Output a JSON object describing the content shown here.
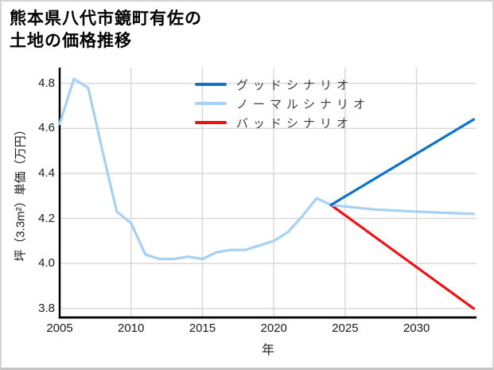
{
  "header": {
    "title_line1": "熊本県八代市鏡町有佐の",
    "title_line2": "土地の価格推移"
  },
  "chart_data": {
    "type": "line",
    "title": "熊本県八代市鏡町有佐の土地の価格推移",
    "xlabel": "年",
    "ylabel": "坪（3.3m²）単価（万円）",
    "xlim": [
      2005,
      2034.2
    ],
    "ylim": [
      3.76,
      4.87
    ],
    "x_ticks": [
      2005,
      2010,
      2015,
      2020,
      2025,
      2030
    ],
    "y_ticks": [
      3.8,
      4.0,
      4.2,
      4.4,
      4.6,
      4.8
    ],
    "grid": true,
    "legend_position": "upper-left-of-center, no frame",
    "colors": {
      "good": "#0e74c9",
      "normal": "#a7d1f4",
      "bad": "#ee1111",
      "grid": "#d9d9d9",
      "axis": "#000000"
    },
    "legend": [
      {
        "label": "グッドシナリオ",
        "color_key": "good"
      },
      {
        "label": "ノーマルシナリオ",
        "color_key": "normal"
      },
      {
        "label": "バッドシナリオ",
        "color_key": "bad"
      }
    ],
    "series": [
      {
        "key": "history-normal",
        "color_key": "normal",
        "points": [
          [
            2005,
            4.62
          ],
          [
            2006,
            4.82
          ],
          [
            2007,
            4.78
          ],
          [
            2008,
            4.5
          ],
          [
            2009,
            4.23
          ],
          [
            2010,
            4.18
          ],
          [
            2011,
            4.04
          ],
          [
            2012,
            4.02
          ],
          [
            2013,
            4.02
          ],
          [
            2014,
            4.03
          ],
          [
            2015,
            4.02
          ],
          [
            2016,
            4.05
          ],
          [
            2017,
            4.06
          ],
          [
            2018,
            4.06
          ],
          [
            2019,
            4.08
          ],
          [
            2020,
            4.1
          ],
          [
            2021,
            4.14
          ],
          [
            2022,
            4.21
          ],
          [
            2023,
            4.29
          ],
          [
            2024,
            4.26
          ]
        ]
      },
      {
        "key": "bad-forecast",
        "color_key": "bad",
        "points": [
          [
            2024,
            4.26
          ],
          [
            2034,
            3.8
          ]
        ]
      },
      {
        "key": "normal-forecast",
        "color_key": "normal",
        "points": [
          [
            2024,
            4.26
          ],
          [
            2027,
            4.24
          ],
          [
            2030,
            4.23
          ],
          [
            2034,
            4.22
          ]
        ]
      },
      {
        "key": "good-forecast",
        "color_key": "good",
        "points": [
          [
            2024,
            4.26
          ],
          [
            2034,
            4.64
          ]
        ]
      }
    ]
  }
}
